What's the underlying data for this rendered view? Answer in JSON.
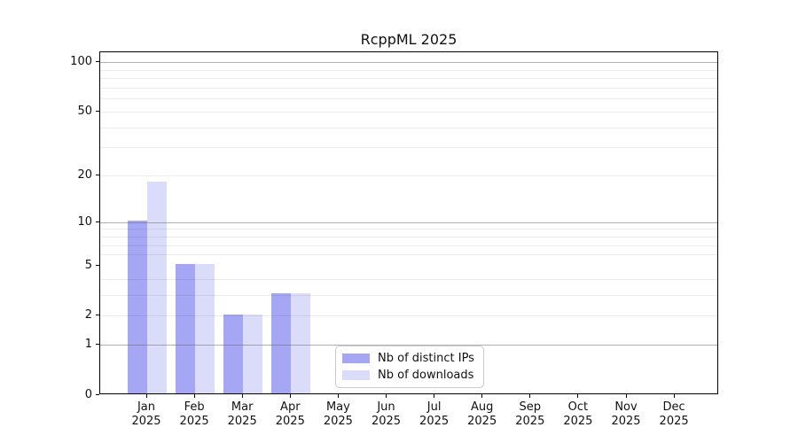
{
  "figure": {
    "background": "#ffffff",
    "text_color": "#111111"
  },
  "chart_data": {
    "type": "bar",
    "title": "RcppML 2025",
    "months": [
      "Jan",
      "Feb",
      "Mar",
      "Apr",
      "May",
      "Jun",
      "Jul",
      "Aug",
      "Sep",
      "Oct",
      "Nov",
      "Dec"
    ],
    "year_label": "2025",
    "series": [
      {
        "name": "Nb of distinct IPs",
        "color": "#a5a7f5",
        "values": [
          10,
          5,
          2,
          3,
          0,
          0,
          0,
          0,
          0,
          0,
          0,
          0
        ]
      },
      {
        "name": "Nb of downloads",
        "color": "#dadcfa",
        "values": [
          18,
          5,
          2,
          3,
          0,
          0,
          0,
          0,
          0,
          0,
          0,
          0
        ]
      }
    ],
    "y_ticks": [
      100,
      50,
      20,
      10,
      5,
      2,
      1,
      0
    ],
    "y_scale": "log10(1+y), 0 at axis bottom",
    "ylim": [
      0,
      116
    ],
    "grid": {
      "orientation": "horizontal",
      "major_lines": [
        1,
        10,
        100
      ],
      "minor_lines": [
        2,
        3,
        4,
        6,
        7,
        8,
        9,
        20,
        30,
        40,
        50,
        60,
        70,
        80,
        90
      ]
    },
    "legend": {
      "position": "bottom-center-inside",
      "items": [
        "Nb of distinct IPs",
        "Nb of downloads"
      ]
    }
  }
}
